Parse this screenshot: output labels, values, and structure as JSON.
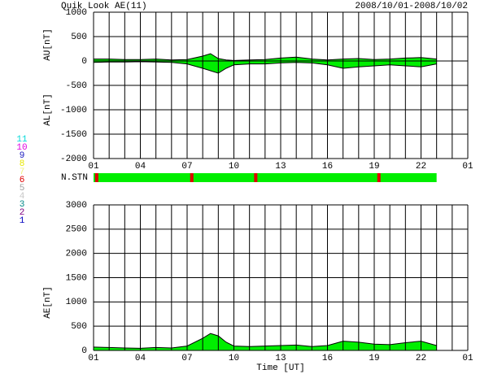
{
  "header": {
    "title": "Quik Look AE(11)",
    "date_range": "2008/10/01-2008/10/02"
  },
  "station_legend": [
    {
      "label": "11",
      "color": "#00d8d8"
    },
    {
      "label": "10",
      "color": "#e000e0"
    },
    {
      "label": "9",
      "color": "#2020c0"
    },
    {
      "label": "8",
      "color": "#e8e800"
    },
    {
      "label": "7",
      "color": "#f0f080"
    },
    {
      "label": "6",
      "color": "#e00000"
    },
    {
      "label": "5",
      "color": "#a0a0a0"
    },
    {
      "label": "4",
      "color": "#c8c8c8"
    },
    {
      "label": "3",
      "color": "#008888"
    },
    {
      "label": "2",
      "color": "#800080"
    },
    {
      "label": "1",
      "color": "#0000c0"
    }
  ],
  "nstn": {
    "label": "N.STN",
    "color": "#00ee00",
    "drop_color": "#e00000",
    "start": 0,
    "end": 22,
    "drops_x": [
      0.2,
      6.3,
      10.4,
      18.3
    ],
    "values": [
      6,
      6,
      6,
      6
    ]
  },
  "chart_data": [
    {
      "type": "area",
      "ylabels": [
        "AU[nT]",
        "AL[nT]"
      ],
      "x": [
        0,
        1,
        2,
        3,
        4,
        5,
        6,
        7,
        7.5,
        8,
        8.5,
        9,
        10,
        11,
        12,
        13,
        14,
        15,
        16,
        17,
        18,
        19,
        20,
        21,
        22
      ],
      "series": [
        {
          "name": "AU",
          "color": "#00ee00",
          "values": [
            40,
            40,
            30,
            30,
            40,
            20,
            30,
            100,
            150,
            50,
            20,
            10,
            20,
            30,
            60,
            80,
            40,
            20,
            40,
            50,
            30,
            40,
            60,
            70,
            40
          ]
        },
        {
          "name": "AL",
          "color": "#00ee00",
          "values": [
            -30,
            -20,
            -20,
            -15,
            -20,
            -30,
            -60,
            -150,
            -200,
            -250,
            -150,
            -80,
            -60,
            -60,
            -40,
            -30,
            -40,
            -80,
            -150,
            -120,
            -100,
            -80,
            -100,
            -120,
            -60
          ]
        }
      ],
      "xlim": [
        0,
        24
      ],
      "xticks": [
        {
          "value": 0,
          "label": "01"
        },
        {
          "value": 3,
          "label": "04"
        },
        {
          "value": 6,
          "label": "07"
        },
        {
          "value": 9,
          "label": "10"
        },
        {
          "value": 12,
          "label": "13"
        },
        {
          "value": 15,
          "label": "16"
        },
        {
          "value": 18,
          "label": "19"
        },
        {
          "value": 21,
          "label": "22"
        },
        {
          "value": 24,
          "label": "01"
        }
      ],
      "xgrid": [
        1,
        2,
        4,
        5,
        7,
        8,
        10,
        11,
        13,
        14,
        16,
        17,
        19,
        20,
        22,
        23
      ],
      "ylim": [
        -2000,
        1000
      ],
      "yticks": [
        1000,
        500,
        0,
        -500,
        -1000,
        -1500,
        -2000
      ],
      "grid": true
    },
    {
      "type": "area",
      "ylabels": [
        "AE[nT]"
      ],
      "xlabel": "Time [UT]",
      "x": [
        0,
        1,
        2,
        3,
        4,
        5,
        6,
        7,
        7.5,
        8,
        8.5,
        9,
        10,
        11,
        12,
        13,
        14,
        15,
        16,
        17,
        18,
        19,
        20,
        21,
        22
      ],
      "series": [
        {
          "name": "AE",
          "color": "#00ee00",
          "values": [
            70,
            60,
            50,
            45,
            60,
            50,
            90,
            250,
            350,
            300,
            170,
            90,
            80,
            90,
            100,
            110,
            80,
            100,
            190,
            170,
            130,
            120,
            160,
            190,
            100
          ]
        }
      ],
      "xlim": [
        0,
        24
      ],
      "xticks": [
        {
          "value": 0,
          "label": "01"
        },
        {
          "value": 3,
          "label": "04"
        },
        {
          "value": 6,
          "label": "07"
        },
        {
          "value": 9,
          "label": "10"
        },
        {
          "value": 12,
          "label": "13"
        },
        {
          "value": 15,
          "label": "16"
        },
        {
          "value": 18,
          "label": "19"
        },
        {
          "value": 21,
          "label": "22"
        },
        {
          "value": 24,
          "label": "01"
        }
      ],
      "xgrid": [
        1,
        2,
        4,
        5,
        7,
        8,
        10,
        11,
        13,
        14,
        16,
        17,
        19,
        20,
        22,
        23
      ],
      "ylim": [
        0,
        3000
      ],
      "yticks": [
        0,
        500,
        1000,
        1500,
        2000,
        2500,
        3000
      ],
      "grid": true
    }
  ]
}
